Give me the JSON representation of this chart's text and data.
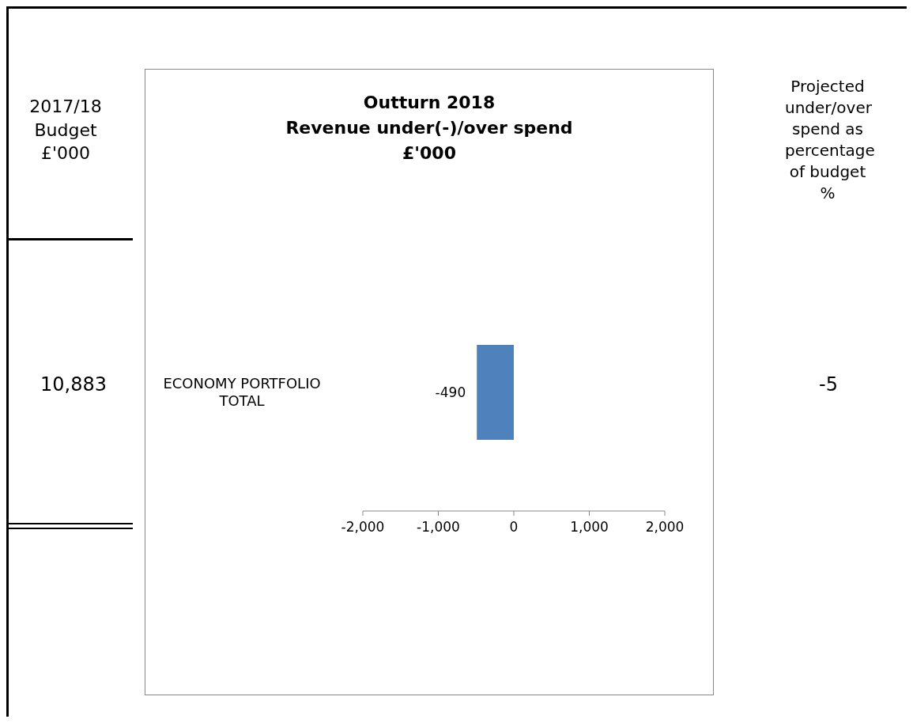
{
  "chart_data": {
    "type": "bar",
    "orientation": "horizontal",
    "title": "Outturn 2018\nRevenue under(-)/over spend\n£'000",
    "categories": [
      "ECONOMY PORTFOLIO TOTAL"
    ],
    "values": [
      -490
    ],
    "color": "#4f81bd",
    "data_labels": true,
    "xlim": [
      -2000,
      2000
    ],
    "xticks": [
      {
        "value": -2000,
        "label": "-2,000"
      },
      {
        "value": -1000,
        "label": "-1,000"
      },
      {
        "value": 0,
        "label": "0"
      },
      {
        "value": 1000,
        "label": "1,000"
      },
      {
        "value": 2000,
        "label": "2,000"
      }
    ],
    "annotations": [
      "2017/18 Budget £'000",
      "10,883",
      "Projected under/over spend as percentage of budget %",
      "-5"
    ]
  }
}
